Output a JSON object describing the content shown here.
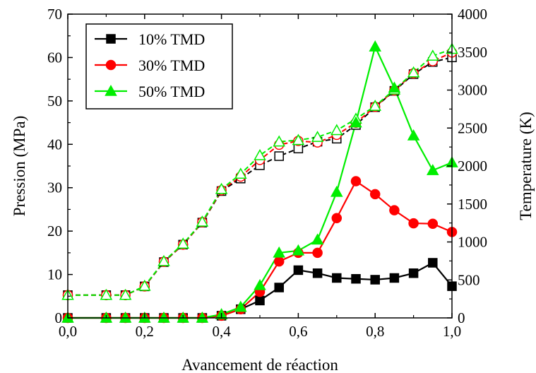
{
  "chart_data": {
    "type": "line",
    "xlabel": "Avancement de réaction",
    "ylabel_left": "Pression (MPa)",
    "ylabel_right": "Temperature (K)",
    "xlim": [
      0,
      1
    ],
    "ylim_left": [
      0,
      70
    ],
    "ylim_right": [
      0,
      4000
    ],
    "x_ticks": [
      "0,0",
      "0,2",
      "0,4",
      "0,6",
      "0,8",
      "1,0"
    ],
    "y_left_ticks": [
      "0",
      "10",
      "20",
      "30",
      "40",
      "50",
      "60",
      "70"
    ],
    "y_right_ticks": [
      "0",
      "500",
      "1000",
      "1500",
      "2000",
      "2500",
      "3000",
      "3500",
      "4000"
    ],
    "legend_position": "top-left",
    "grid": false,
    "x": [
      0,
      0.1,
      0.15,
      0.2,
      0.25,
      0.3,
      0.35,
      0.4,
      0.45,
      0.5,
      0.55,
      0.6,
      0.65,
      0.7,
      0.75,
      0.8,
      0.85,
      0.9,
      0.95,
      1.0
    ],
    "series": [
      {
        "name": "10% TMD",
        "color": "#000000",
        "marker": "square",
        "pressure": [
          0,
          0,
          0,
          0,
          0,
          0,
          0,
          0.5,
          2.0,
          4.0,
          7.0,
          11.0,
          10.3,
          9.2,
          9.0,
          8.8,
          9.2,
          10.3,
          12.7,
          7.3
        ],
        "temperature": [
          300,
          300,
          300,
          415,
          735,
          965,
          1255,
          1670,
          1835,
          2010,
          2130,
          2230,
          2320,
          2360,
          2540,
          2775,
          2990,
          3210,
          3370,
          3430
        ]
      },
      {
        "name": "30% TMD",
        "color": "#ff0000",
        "marker": "circle",
        "pressure": [
          0,
          0,
          0,
          0,
          0,
          0,
          0,
          0.5,
          2.0,
          6.0,
          13.0,
          15.0,
          15.0,
          23.0,
          31.5,
          28.5,
          24.8,
          21.8,
          21.7,
          19.8
        ],
        "temperature": [
          300,
          300,
          300,
          415,
          740,
          965,
          1260,
          1680,
          1860,
          2080,
          2280,
          2330,
          2310,
          2410,
          2570,
          2780,
          2995,
          3220,
          3380,
          3495
        ]
      },
      {
        "name": "50% TMD",
        "color": "#00ee00",
        "marker": "triangle",
        "pressure": [
          0,
          0,
          0,
          0,
          0,
          0,
          0,
          0.8,
          2.5,
          7.5,
          15.0,
          15.5,
          18.0,
          29.0,
          45.0,
          62.5,
          53.0,
          42.0,
          34.0,
          35.8
        ],
        "temperature": [
          300,
          300,
          300,
          420,
          745,
          975,
          1265,
          1695,
          1895,
          2140,
          2320,
          2340,
          2380,
          2470,
          2620,
          2790,
          3005,
          3230,
          3450,
          3540
        ]
      }
    ]
  }
}
